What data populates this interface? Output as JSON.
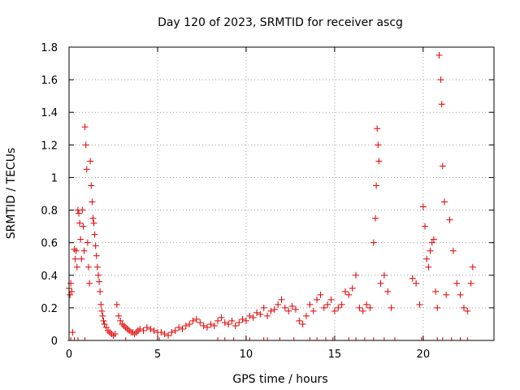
{
  "chart_data": {
    "type": "scatter",
    "title": "Day 120 of 2023, SRMTID for receiver ascg",
    "xlabel": "GPS time / hours",
    "ylabel": "SRMTID / TECUs",
    "xlim": [
      0,
      24
    ],
    "ylim": [
      0,
      1.8
    ],
    "xticks": [
      0,
      5,
      10,
      15,
      20
    ],
    "xtick_labels": [
      "0",
      "5",
      "10",
      "15",
      "20"
    ],
    "yticks": [
      0,
      0.2,
      0.4,
      0.6,
      0.8,
      1.0,
      1.2,
      1.4,
      1.6,
      1.8
    ],
    "ytick_labels": [
      "0",
      "0.2",
      "0.4",
      "0.6",
      "0.8",
      "1",
      "1.2",
      "1.4",
      "1.6",
      "1.8"
    ],
    "grid": true,
    "marker": "plus",
    "color": "#e00000",
    "series": [
      {
        "name": "SRMTID",
        "x": [
          0.0,
          0.05,
          0.1,
          0.15,
          0.2,
          0.3,
          0.35,
          0.4,
          0.45,
          0.5,
          0.55,
          0.6,
          0.65,
          0.7,
          0.75,
          0.8,
          0.85,
          0.9,
          0.95,
          1.0,
          1.05,
          1.1,
          1.15,
          1.2,
          1.25,
          1.3,
          1.35,
          1.4,
          1.45,
          1.5,
          1.55,
          1.6,
          1.65,
          1.7,
          1.75,
          1.8,
          1.85,
          1.9,
          1.95,
          2.0,
          2.1,
          2.2,
          2.3,
          2.4,
          2.5,
          2.6,
          2.7,
          2.8,
          2.9,
          3.0,
          3.1,
          3.2,
          3.3,
          3.4,
          3.5,
          3.6,
          3.7,
          3.8,
          3.9,
          4.0,
          4.2,
          4.4,
          4.6,
          4.8,
          5.0,
          5.2,
          5.4,
          5.6,
          5.8,
          6.0,
          6.2,
          6.4,
          6.6,
          6.8,
          7.0,
          7.2,
          7.4,
          7.6,
          7.8,
          8.0,
          8.2,
          8.4,
          8.6,
          8.8,
          9.0,
          9.2,
          9.4,
          9.6,
          9.8,
          10.0,
          10.2,
          10.4,
          10.6,
          10.8,
          11.0,
          11.2,
          11.4,
          11.6,
          11.8,
          12.0,
          12.2,
          12.4,
          12.6,
          12.8,
          13.0,
          13.2,
          13.4,
          13.6,
          13.8,
          14.0,
          14.2,
          14.4,
          14.6,
          14.8,
          15.0,
          15.2,
          15.4,
          15.6,
          15.8,
          16.0,
          16.2,
          16.4,
          16.6,
          16.8,
          17.0,
          17.2,
          17.3,
          17.35,
          17.4,
          17.45,
          17.5,
          17.6,
          17.8,
          18.0,
          18.2,
          19.4,
          19.6,
          19.8,
          20.0,
          20.1,
          20.2,
          20.3,
          20.4,
          20.5,
          20.6,
          20.7,
          20.8,
          20.9,
          21.0,
          21.05,
          21.1,
          21.2,
          21.3,
          21.5,
          21.7,
          21.9,
          22.1,
          22.3,
          22.5,
          22.7,
          22.8
        ],
        "y": [
          0.32,
          0.28,
          0.35,
          0.3,
          0.05,
          0.56,
          0.5,
          0.55,
          0.45,
          0.8,
          0.78,
          0.72,
          0.62,
          0.5,
          0.8,
          0.7,
          0.55,
          1.31,
          1.2,
          1.05,
          0.6,
          0.45,
          0.35,
          1.1,
          0.95,
          0.85,
          0.75,
          0.72,
          0.65,
          0.58,
          0.52,
          0.45,
          0.4,
          0.36,
          0.3,
          0.22,
          0.18,
          0.15,
          0.12,
          0.1,
          0.08,
          0.06,
          0.05,
          0.04,
          0.03,
          0.04,
          0.22,
          0.15,
          0.12,
          0.1,
          0.09,
          0.08,
          0.07,
          0.06,
          0.05,
          0.05,
          0.04,
          0.05,
          0.06,
          0.07,
          0.06,
          0.08,
          0.07,
          0.06,
          0.05,
          0.05,
          0.04,
          0.03,
          0.05,
          0.06,
          0.08,
          0.07,
          0.09,
          0.1,
          0.12,
          0.13,
          0.11,
          0.09,
          0.08,
          0.1,
          0.09,
          0.12,
          0.14,
          0.11,
          0.1,
          0.12,
          0.09,
          0.11,
          0.13,
          0.12,
          0.15,
          0.14,
          0.17,
          0.16,
          0.2,
          0.15,
          0.18,
          0.19,
          0.22,
          0.25,
          0.2,
          0.18,
          0.21,
          0.19,
          0.12,
          0.1,
          0.15,
          0.22,
          0.18,
          0.25,
          0.28,
          0.2,
          0.22,
          0.25,
          0.18,
          0.2,
          0.22,
          0.3,
          0.28,
          0.32,
          0.4,
          0.2,
          0.18,
          0.22,
          0.2,
          0.6,
          0.75,
          0.95,
          1.3,
          1.2,
          1.1,
          0.35,
          0.4,
          0.3,
          0.2,
          0.38,
          0.35,
          0.22,
          0.82,
          0.7,
          0.5,
          0.45,
          0.55,
          0.6,
          0.62,
          0.3,
          0.2,
          1.75,
          1.6,
          1.45,
          1.07,
          0.85,
          0.28,
          0.74,
          0.55,
          0.35,
          0.28,
          0.2,
          0.18,
          0.35,
          0.45
        ],
        "zero_x": [
          0.1,
          0.3,
          0.5,
          0.9,
          3.2,
          5.1,
          8.4,
          8.8,
          9.3,
          10.2,
          11.0,
          11.2,
          11.9,
          12.7,
          13.6,
          14.0,
          14.5,
          14.9,
          15.8,
          16.2,
          16.7,
          17.2,
          17.8,
          18.4,
          19.9,
          20.0,
          20.8,
          21.1,
          21.6,
          22.1,
          22.5
        ]
      }
    ]
  }
}
